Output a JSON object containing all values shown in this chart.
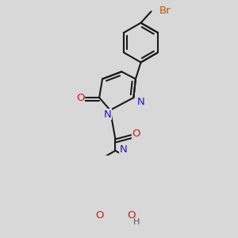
{
  "bg_color": "#d8d8d8",
  "bond_color": "#1a1a1a",
  "bond_lw": 1.5,
  "atom_colors": {
    "N": "#1a1acc",
    "O": "#cc1a1a",
    "Br": "#bb5500",
    "H": "#555555"
  },
  "font_size": 9.5
}
